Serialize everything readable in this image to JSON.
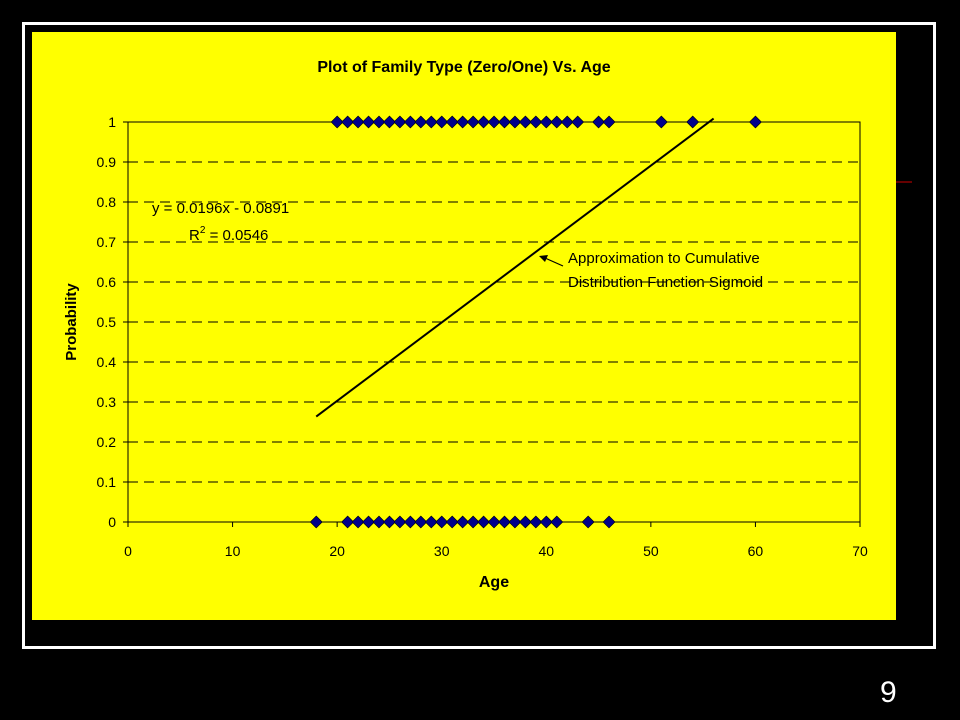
{
  "slide": {
    "number": "9"
  },
  "colors": {
    "background": "#000000",
    "plot_area": "#ffff00",
    "marker": "#00008b",
    "line": "#000000"
  },
  "chart_data": {
    "type": "scatter",
    "title": "Plot of Family Type (Zero/One) Vs. Age",
    "xlabel": "Age",
    "ylabel": "Probability",
    "xlim": [
      0,
      70
    ],
    "ylim": [
      0,
      1
    ],
    "x_ticks": [
      "0",
      "10",
      "20",
      "30",
      "40",
      "50",
      "60",
      "70"
    ],
    "y_ticks": [
      "0",
      "0.1",
      "0.2",
      "0.3",
      "0.4",
      "0.5",
      "0.6",
      "0.7",
      "0.8",
      "0.9",
      "1"
    ],
    "grid": "horizontal dashed",
    "series": [
      {
        "marker": "diamond",
        "points": [
          [
            20,
            1
          ],
          [
            21,
            1
          ],
          [
            22,
            1
          ],
          [
            23,
            1
          ],
          [
            24,
            1
          ],
          [
            25,
            1
          ],
          [
            26,
            1
          ],
          [
            27,
            1
          ],
          [
            28,
            1
          ],
          [
            29,
            1
          ],
          [
            30,
            1
          ],
          [
            31,
            1
          ],
          [
            32,
            1
          ],
          [
            33,
            1
          ],
          [
            34,
            1
          ],
          [
            35,
            1
          ],
          [
            36,
            1
          ],
          [
            37,
            1
          ],
          [
            38,
            1
          ],
          [
            39,
            1
          ],
          [
            40,
            1
          ],
          [
            41,
            1
          ],
          [
            42,
            1
          ],
          [
            43,
            1
          ],
          [
            45,
            1
          ],
          [
            46,
            1
          ],
          [
            51,
            1
          ],
          [
            54,
            1
          ],
          [
            60,
            1
          ],
          [
            18,
            0
          ],
          [
            21,
            0
          ],
          [
            22,
            0
          ],
          [
            23,
            0
          ],
          [
            24,
            0
          ],
          [
            25,
            0
          ],
          [
            26,
            0
          ],
          [
            27,
            0
          ],
          [
            28,
            0
          ],
          [
            29,
            0
          ],
          [
            30,
            0
          ],
          [
            31,
            0
          ],
          [
            32,
            0
          ],
          [
            33,
            0
          ],
          [
            34,
            0
          ],
          [
            35,
            0
          ],
          [
            36,
            0
          ],
          [
            37,
            0
          ],
          [
            38,
            0
          ],
          [
            39,
            0
          ],
          [
            40,
            0
          ],
          [
            41,
            0
          ],
          [
            44,
            0
          ],
          [
            46,
            0
          ]
        ]
      }
    ],
    "trendline": {
      "type": "linear",
      "x_range": [
        18,
        56
      ],
      "slope": 0.0196,
      "intercept": -0.0891
    },
    "annotations": {
      "equation": "y = 0.0196x - 0.0891",
      "r_squared_label": "R",
      "r_squared_sup": "2",
      "r_squared_value": " = 0.0546",
      "callout_line1": "Approximation to Cumulative",
      "callout_line2": "Distribution Function Sigmoid"
    }
  }
}
